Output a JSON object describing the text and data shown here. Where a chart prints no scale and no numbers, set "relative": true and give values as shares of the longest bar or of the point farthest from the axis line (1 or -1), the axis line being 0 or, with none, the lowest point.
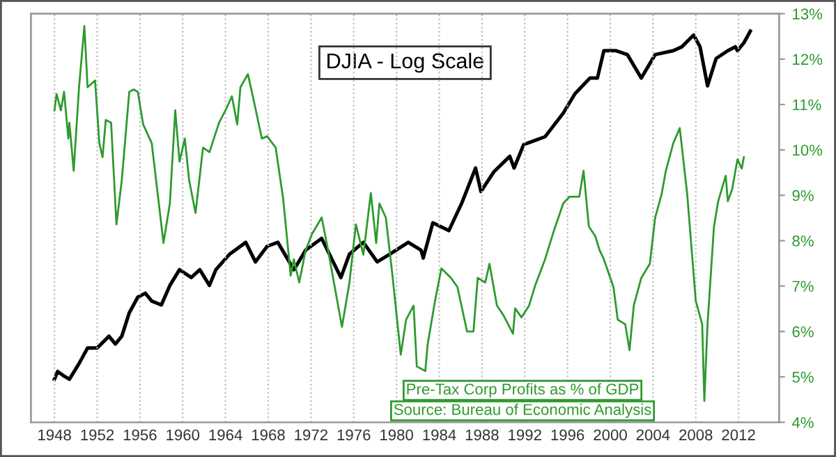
{
  "chart_data": [
    {
      "type": "line",
      "relative": true,
      "grid": "x",
      "xlim": [
        1945.8,
        2015.8
      ],
      "series": [
        {
          "name": "DJIA - Log Scale",
          "color": "#000000",
          "x": [
            1948.0,
            1948.3,
            1948.8,
            1949.4,
            1950.3,
            1951.1,
            1952.0,
            1953.1,
            1953.7,
            1954.3,
            1955.0,
            1955.8,
            1956.5,
            1957.1,
            1958.0,
            1958.8,
            1959.7,
            1960.8,
            1961.6,
            1962.5,
            1963.1,
            1964.4,
            1965.9,
            1966.8,
            1967.9,
            1968.9,
            1970.4,
            1971.5,
            1973.0,
            1973.9,
            1974.8,
            1975.6,
            1976.9,
            1978.2,
            1979.4,
            1981.1,
            1982.3,
            1982.5,
            1983.4,
            1984.9,
            1986.1,
            1987.4,
            1987.9,
            1989.1,
            1990.6,
            1991.0,
            1991.9,
            1993.9,
            1995.6,
            1996.7,
            1998.1,
            1998.8,
            1999.4,
            2000.5,
            2001.6,
            2002.9,
            2004.2,
            2005.9,
            2006.7,
            2007.8,
            2008.4,
            2009.1,
            2009.9,
            2011.0,
            2011.7,
            2011.9,
            2012.5,
            2013.1
          ],
          "values": [
            0.11,
            0.13,
            0.12,
            0.11,
            0.15,
            0.19,
            0.19,
            0.22,
            0.2,
            0.22,
            0.28,
            0.32,
            0.33,
            0.31,
            0.3,
            0.35,
            0.39,
            0.37,
            0.39,
            0.35,
            0.39,
            0.43,
            0.46,
            0.41,
            0.45,
            0.46,
            0.39,
            0.44,
            0.47,
            0.42,
            0.37,
            0.43,
            0.46,
            0.41,
            0.43,
            0.46,
            0.44,
            0.42,
            0.51,
            0.49,
            0.56,
            0.65,
            0.59,
            0.64,
            0.68,
            0.65,
            0.71,
            0.73,
            0.79,
            0.84,
            0.88,
            0.88,
            0.95,
            0.95,
            0.94,
            0.88,
            0.94,
            0.95,
            0.96,
            0.99,
            0.96,
            0.86,
            0.93,
            0.95,
            0.96,
            0.95,
            0.97,
            1.0
          ]
        }
      ]
    },
    {
      "type": "line",
      "grid": "x",
      "xlim": [
        1945.8,
        2015.8
      ],
      "xticks": [
        1948,
        1952,
        1956,
        1960,
        1964,
        1968,
        1972,
        1976,
        1980,
        1984,
        1988,
        1992,
        1996,
        2000,
        2004,
        2008,
        2012
      ],
      "y2lim": [
        4,
        13
      ],
      "y2ticks": [
        {
          "value": 4,
          "label": "4%"
        },
        {
          "value": 5,
          "label": "5%"
        },
        {
          "value": 6,
          "label": "6%"
        },
        {
          "value": 7,
          "label": "7%"
        },
        {
          "value": 8,
          "label": "8%"
        },
        {
          "value": 9,
          "label": "9%"
        },
        {
          "value": 10,
          "label": "10%"
        },
        {
          "value": 11,
          "label": "11%"
        },
        {
          "value": 12,
          "label": "12%"
        },
        {
          "value": 13,
          "label": "13%"
        }
      ],
      "annotations": [
        "Source: Bureau of Economic Analysis"
      ],
      "series": [
        {
          "name": "Pre-Tax Corp Profits as % of GDP",
          "color": "#2e9a2e",
          "axis": "y2",
          "x": [
            1948.0,
            1948.2,
            1948.6,
            1948.9,
            1949.3,
            1949.4,
            1949.8,
            1950.3,
            1950.8,
            1951.1,
            1951.8,
            1952.2,
            1952.5,
            1952.8,
            1953.3,
            1953.8,
            1954.3,
            1955.0,
            1955.4,
            1955.8,
            1956.3,
            1957.1,
            1958.2,
            1958.8,
            1959.3,
            1959.7,
            1960.2,
            1960.6,
            1961.2,
            1961.9,
            1962.5,
            1963.4,
            1964.0,
            1964.6,
            1965.1,
            1965.4,
            1966.1,
            1966.8,
            1967.4,
            1967.9,
            1968.7,
            1969.4,
            1970.1,
            1970.4,
            1970.9,
            1971.5,
            1972.1,
            1973.0,
            1973.6,
            1974.9,
            1975.6,
            1976.2,
            1976.9,
            1977.6,
            1978.1,
            1978.4,
            1979.0,
            1979.6,
            1980.4,
            1980.9,
            1981.6,
            1981.9,
            1982.7,
            1982.9,
            1983.6,
            1984.2,
            1985.1,
            1985.7,
            1986.6,
            1987.2,
            1987.6,
            1988.3,
            1988.7,
            1989.4,
            1990.0,
            1990.9,
            1991.1,
            1991.7,
            1992.4,
            1993.0,
            1993.9,
            1994.7,
            1995.6,
            1996.2,
            1997.1,
            1997.5,
            1998.0,
            1998.6,
            1999.0,
            1999.4,
            2000.3,
            2000.7,
            2001.4,
            2001.8,
            2002.2,
            2002.9,
            2003.7,
            2004.2,
            2004.8,
            2005.2,
            2005.9,
            2006.5,
            2007.2,
            2008.0,
            2008.6,
            2008.8,
            2009.1,
            2009.7,
            2010.1,
            2010.8,
            2011.0,
            2011.4,
            2011.9,
            2012.3,
            2012.5
          ],
          "values": [
            10.87,
            11.23,
            10.87,
            11.28,
            10.25,
            10.6,
            9.54,
            11.38,
            12.73,
            11.38,
            11.53,
            10.15,
            9.84,
            10.66,
            10.6,
            8.36,
            9.33,
            11.28,
            11.33,
            11.28,
            10.56,
            10.15,
            7.95,
            8.82,
            10.87,
            9.74,
            10.25,
            9.33,
            8.61,
            10.05,
            9.95,
            10.6,
            10.87,
            11.18,
            10.56,
            11.38,
            11.67,
            10.92,
            10.25,
            10.3,
            10.05,
            8.92,
            7.23,
            7.59,
            7.08,
            7.79,
            8.15,
            8.51,
            7.79,
            6.1,
            7.08,
            8.36,
            7.69,
            9.05,
            7.95,
            8.82,
            8.51,
            7.28,
            5.49,
            6.26,
            6.57,
            5.23,
            5.13,
            5.69,
            6.67,
            7.39,
            7.18,
            6.98,
            6.0,
            6.0,
            7.18,
            7.08,
            7.49,
            6.57,
            6.36,
            5.95,
            6.51,
            6.31,
            6.57,
            7.03,
            7.59,
            8.2,
            8.82,
            8.97,
            8.97,
            9.54,
            8.31,
            8.1,
            7.79,
            7.59,
            6.98,
            6.26,
            6.16,
            5.59,
            6.57,
            7.18,
            7.49,
            8.51,
            9.02,
            9.54,
            10.15,
            10.48,
            9.02,
            6.67,
            6.16,
            4.47,
            6.16,
            8.31,
            8.87,
            9.43,
            8.87,
            9.13,
            9.79,
            9.59,
            9.84
          ]
        }
      ]
    }
  ]
}
